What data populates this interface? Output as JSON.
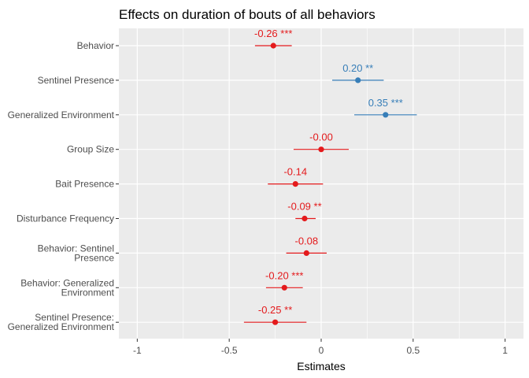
{
  "chart_data": {
    "type": "forest",
    "title": "Effects on duration of bouts of all behaviors",
    "xlabel": "Estimates",
    "ylabel": "",
    "xlim": [
      -1.1,
      1.1
    ],
    "xticks": [
      -1,
      -0.5,
      0,
      0.5,
      1
    ],
    "xtick_labels": [
      "-1",
      "-0.5",
      "0",
      "0.5",
      "1"
    ],
    "grid": true,
    "colors": {
      "negative": "#e41a1c",
      "positive": "#377eb8",
      "panel": "#ebebeb",
      "grid": "#ffffff"
    },
    "terms": [
      {
        "label": [
          "Behavior"
        ],
        "estimate": -0.26,
        "ci_low": -0.36,
        "ci_high": -0.16,
        "text": "-0.26 ***"
      },
      {
        "label": [
          "Sentinel Presence"
        ],
        "estimate": 0.2,
        "ci_low": 0.06,
        "ci_high": 0.34,
        "text": "0.20 **"
      },
      {
        "label": [
          "Generalized Environment"
        ],
        "estimate": 0.35,
        "ci_low": 0.18,
        "ci_high": 0.52,
        "text": "0.35 ***"
      },
      {
        "label": [
          "Group Size"
        ],
        "estimate": 0.0,
        "ci_low": -0.15,
        "ci_high": 0.15,
        "text": "-0.00"
      },
      {
        "label": [
          "Bait Presence"
        ],
        "estimate": -0.14,
        "ci_low": -0.29,
        "ci_high": 0.01,
        "text": "-0.14"
      },
      {
        "label": [
          "Disturbance Frequency"
        ],
        "estimate": -0.09,
        "ci_low": -0.14,
        "ci_high": -0.03,
        "text": "-0.09 **"
      },
      {
        "label": [
          "Behavior: Sentinel",
          "Presence"
        ],
        "estimate": -0.08,
        "ci_low": -0.19,
        "ci_high": 0.03,
        "text": "-0.08"
      },
      {
        "label": [
          "Behavior: Generalized",
          "Environment"
        ],
        "estimate": -0.2,
        "ci_low": -0.3,
        "ci_high": -0.1,
        "text": "-0.20 ***"
      },
      {
        "label": [
          "Sentinel Presence:",
          "Generalized Environment"
        ],
        "estimate": -0.25,
        "ci_low": -0.42,
        "ci_high": -0.08,
        "text": "-0.25 **"
      }
    ]
  }
}
